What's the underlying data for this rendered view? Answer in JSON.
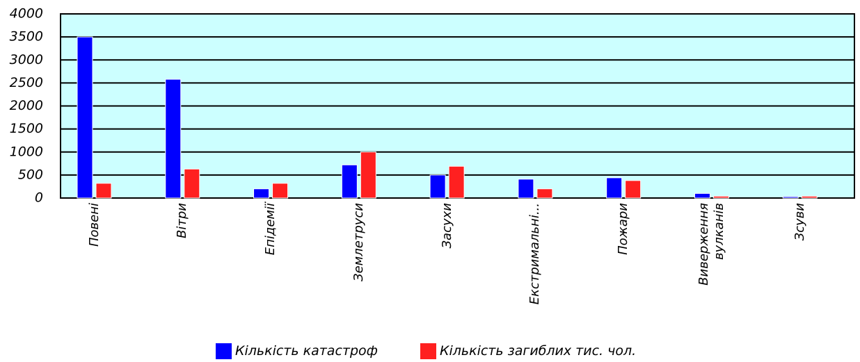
{
  "chart_data": {
    "type": "bar",
    "categories": [
      "Повені",
      "Вітри",
      "Епідемії",
      "Землетруси",
      "Засухи",
      "Екстримальні...",
      "Пожари",
      "Виверження вулканів",
      "Зсуви"
    ],
    "series": [
      {
        "name": "Кількість катастроф",
        "color": "#0000ff",
        "values": [
          3500,
          2580,
          200,
          720,
          500,
          410,
          440,
          100,
          30
        ]
      },
      {
        "name": "Кількість загиблих тис. чол.",
        "color": "#ff2020",
        "values": [
          320,
          630,
          320,
          1000,
          690,
          200,
          380,
          40,
          40
        ]
      }
    ],
    "ylim": [
      0,
      4000
    ],
    "yticks": [
      0,
      500,
      1000,
      1500,
      2000,
      2500,
      3000,
      3500,
      4000
    ],
    "grid": true,
    "background": "#ccffff",
    "legend": "bottom"
  }
}
